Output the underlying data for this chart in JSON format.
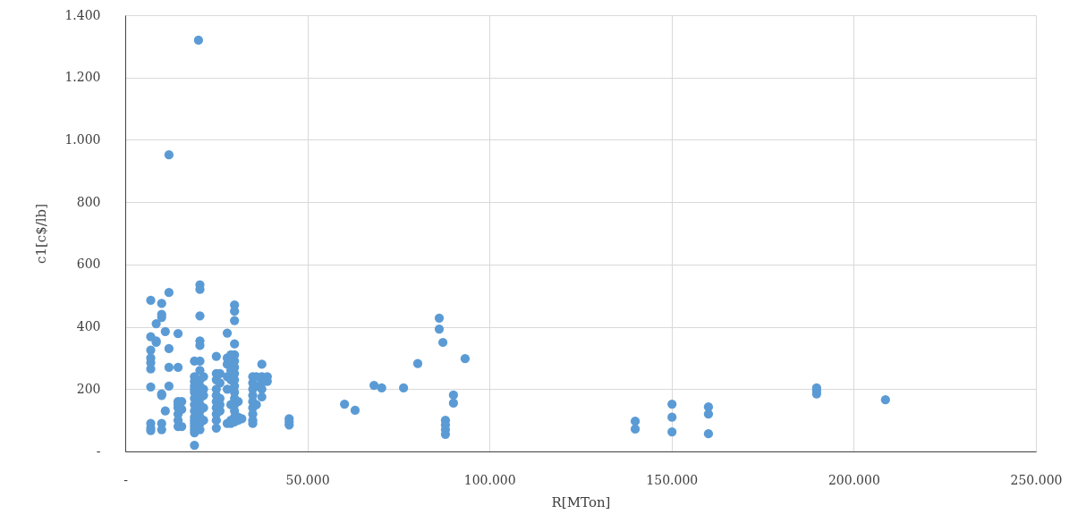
{
  "chart_data": {
    "type": "scatter",
    "xlabel": "R[MTon]",
    "ylabel": "c1[c$/lb]",
    "xlim": [
      0,
      250000
    ],
    "ylim": [
      0,
      1400
    ],
    "xticks": [
      {
        "value": 0,
        "label": "-"
      },
      {
        "value": 50000,
        "label": "50.000"
      },
      {
        "value": 100000,
        "label": "100.000"
      },
      {
        "value": 150000,
        "label": "150.000"
      },
      {
        "value": 200000,
        "label": "200.000"
      },
      {
        "value": 250000,
        "label": "250.000"
      }
    ],
    "yticks": [
      {
        "value": 0,
        "label": "-"
      },
      200,
      400,
      600,
      800,
      {
        "value": 1000,
        "label": "1.000"
      },
      {
        "value": 1200,
        "label": "1.200"
      },
      {
        "value": 1400,
        "label": "1.400"
      }
    ],
    "grid": true,
    "marker": "circle",
    "series": [
      {
        "color": "#5b9bd5",
        "x": [
          7000,
          7000,
          7000,
          7000,
          7000,
          7000,
          7000,
          7000,
          7000,
          7000,
          8500,
          8500,
          8500,
          10000,
          10000,
          10000,
          10000,
          10000,
          10000,
          10000,
          11000,
          11000,
          12000,
          12000,
          12000,
          12000,
          12000,
          14500,
          14500,
          14500,
          14500,
          14500,
          14500,
          14500,
          14500,
          15500,
          15500,
          15500,
          19000,
          19000,
          19000,
          19000,
          19000,
          19000,
          19000,
          19000,
          19000,
          19000,
          19000,
          19000,
          19000,
          19000,
          19000,
          19000,
          20100,
          20500,
          20500,
          20500,
          20500,
          20500,
          20500,
          20500,
          20500,
          20500,
          20500,
          20500,
          20500,
          20500,
          20500,
          20500,
          20500,
          21500,
          21500,
          21500,
          21500,
          21500,
          25000,
          25000,
          25000,
          25000,
          25000,
          25000,
          25000,
          25000,
          25000,
          25000,
          26000,
          26000,
          26000,
          26000,
          26000,
          28000,
          28000,
          28000,
          28000,
          28000,
          28000,
          29000,
          29000,
          29000,
          29000,
          29000,
          29000,
          30000,
          30000,
          30000,
          30000,
          30000,
          30000,
          30000,
          30000,
          30000,
          30000,
          30000,
          30000,
          30000,
          30000,
          30000,
          30000,
          31000,
          31000,
          31000,
          32000,
          35000,
          35000,
          35000,
          35000,
          35000,
          35000,
          35000,
          35000,
          35000,
          36000,
          36000,
          36000,
          37500,
          37500,
          37500,
          37500,
          37500,
          39000,
          39000,
          45000,
          45000,
          45000,
          60200,
          63100,
          68300,
          70400,
          76400,
          80300,
          86200,
          86200,
          87200,
          93300,
          90100,
          90100,
          87900,
          87900,
          87900,
          87900,
          140000,
          140000,
          150100,
          150100,
          150100,
          160100,
          160100,
          160100,
          189800,
          189800,
          189800,
          208700
        ],
        "values": [
          485,
          368,
          325,
          300,
          285,
          265,
          207,
          90,
          75,
          67,
          410,
          355,
          350,
          475,
          440,
          430,
          185,
          180,
          90,
          70,
          385,
          130,
          952,
          510,
          330,
          270,
          210,
          378,
          270,
          160,
          150,
          140,
          120,
          100,
          80,
          160,
          135,
          80,
          290,
          240,
          225,
          210,
          200,
          190,
          170,
          150,
          130,
          110,
          100,
          90,
          80,
          70,
          60,
          20,
          1320,
          535,
          520,
          435,
          355,
          340,
          290,
          260,
          230,
          210,
          190,
          170,
          150,
          130,
          110,
          90,
          70,
          240,
          200,
          180,
          140,
          100,
          305,
          250,
          230,
          200,
          180,
          160,
          140,
          120,
          100,
          75,
          250,
          220,
          170,
          150,
          130,
          380,
          300,
          280,
          240,
          200,
          90,
          310,
          260,
          230,
          150,
          100,
          90,
          470,
          450,
          420,
          345,
          310,
          290,
          270,
          250,
          230,
          210,
          190,
          170,
          150,
          130,
          110,
          95,
          160,
          110,
          100,
          105,
          240,
          220,
          200,
          180,
          160,
          140,
          120,
          100,
          90,
          240,
          210,
          150,
          280,
          240,
          220,
          200,
          175,
          240,
          225,
          105,
          95,
          85,
          152,
          132,
          212,
          204,
          204,
          282,
          428,
          393,
          350,
          298,
          181,
          155,
          100,
          85,
          70,
          55,
          97,
          72,
          152,
          110,
          63,
          143,
          120,
          57,
          204,
          195,
          185,
          166
        ]
      }
    ]
  }
}
